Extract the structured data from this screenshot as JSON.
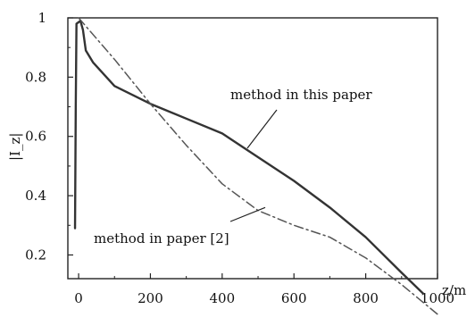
{
  "chart_data": {
    "type": "line",
    "xlabel": "z/m",
    "ylabel": "|I_z|",
    "xlim": [
      -30,
      1000
    ],
    "ylim": [
      0.12,
      1
    ],
    "x_ticks": [
      0,
      200,
      400,
      600,
      800,
      1000
    ],
    "y_ticks": [
      0.2,
      0.4,
      0.6,
      0.8,
      1
    ],
    "x_tick_labels": [
      "0",
      "200",
      "400",
      "600",
      "800",
      "1000"
    ],
    "y_tick_labels": [
      "0.2",
      "0.4",
      "0.6",
      "0.8",
      "1"
    ],
    "grid": false,
    "series": [
      {
        "name": "method in this paper",
        "line_style": "solid",
        "color": "#333333",
        "points": [
          {
            "x": -10,
            "y": 0.29
          },
          {
            "x": -8,
            "y": 0.7
          },
          {
            "x": -6,
            "y": 0.98
          },
          {
            "x": 5,
            "y": 0.99
          },
          {
            "x": 12,
            "y": 0.96
          },
          {
            "x": 20,
            "y": 0.89
          },
          {
            "x": 40,
            "y": 0.85
          },
          {
            "x": 100,
            "y": 0.77
          },
          {
            "x": 200,
            "y": 0.71
          },
          {
            "x": 300,
            "y": 0.66
          },
          {
            "x": 400,
            "y": 0.61
          },
          {
            "x": 500,
            "y": 0.53
          },
          {
            "x": 600,
            "y": 0.45
          },
          {
            "x": 700,
            "y": 0.36
          },
          {
            "x": 800,
            "y": 0.26
          },
          {
            "x": 900,
            "y": 0.14
          },
          {
            "x": 960,
            "y": 0.07
          }
        ]
      },
      {
        "name": "method in paper [2]",
        "line_style": "dash-dot",
        "color": "#555555",
        "points": [
          {
            "x": 0,
            "y": 1
          },
          {
            "x": 100,
            "y": 0.86
          },
          {
            "x": 200,
            "y": 0.71
          },
          {
            "x": 300,
            "y": 0.57
          },
          {
            "x": 400,
            "y": 0.44
          },
          {
            "x": 500,
            "y": 0.35
          },
          {
            "x": 600,
            "y": 0.3
          },
          {
            "x": 700,
            "y": 0.26
          },
          {
            "x": 800,
            "y": 0.19
          },
          {
            "x": 900,
            "y": 0.1
          },
          {
            "x": 1000,
            "y": 0.0
          }
        ]
      }
    ],
    "annotations": [
      {
        "text": "method in this paper",
        "pointer_x": 470,
        "pointer_y": 0.56
      },
      {
        "text": "method in paper [2]",
        "pointer_x": 520,
        "pointer_y": 0.36
      }
    ]
  }
}
